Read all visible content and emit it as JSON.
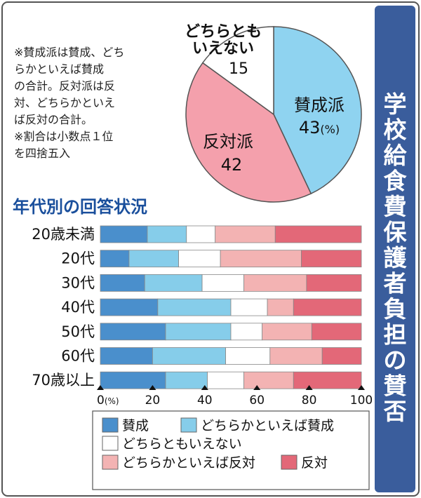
{
  "title": "学校給食費保護者負担の賛否",
  "notes": [
    "※賛成派は賛成、どち",
    "らかといえば賛成",
    "の合計。反対派は反",
    "対、どちらかといえ",
    "ば反対の合計。",
    "※割合は小数点１位",
    "を四捨五入"
  ],
  "unit_label": "(%)",
  "colors": {
    "sansei": "#4a8fcc",
    "dochira_sansei": "#86cdea",
    "neutral": "#ffffff",
    "dochira_hantai": "#f3b3b3",
    "hantai": "#e36878",
    "pie_sansei": "#8fd3f0",
    "pie_hantai": "#f4a0ac",
    "title_bg": "#3a5d9c",
    "section_title": "#1a4f9c"
  },
  "chart_data": [
    {
      "type": "pie",
      "title": "",
      "unit": "%",
      "slices": [
        {
          "label": "賛成派",
          "value": 43,
          "value_text": "43",
          "unit_text": "(%)"
        },
        {
          "label": "反対派",
          "value": 42,
          "value_text": "42",
          "unit_text": ""
        },
        {
          "label_lines": [
            "どちらとも",
            "いえない"
          ],
          "value": 15,
          "value_text": "15",
          "unit_text": ""
        }
      ]
    },
    {
      "type": "bar",
      "stacked": true,
      "orientation": "horizontal",
      "title": "年代別の回答状況",
      "categories": [
        "20歳未満",
        "20代",
        "30代",
        "40代",
        "50代",
        "60代",
        "70歳以上"
      ],
      "series": [
        {
          "name": "賛成",
          "values": [
            18,
            11,
            17,
            22,
            25,
            20,
            25
          ]
        },
        {
          "name": "どちらかといえば賛成",
          "values": [
            15,
            19,
            22,
            28,
            25,
            28,
            16
          ]
        },
        {
          "name": "どちらともいえない",
          "values": [
            11,
            16,
            16,
            14,
            12,
            17,
            14
          ]
        },
        {
          "name": "どちらかといえば反対",
          "values": [
            23,
            31,
            24,
            10,
            19,
            20,
            19
          ]
        },
        {
          "name": "反対",
          "values": [
            33,
            23,
            21,
            26,
            19,
            15,
            26
          ]
        }
      ],
      "xlim": [
        0,
        100
      ],
      "x_ticks": [
        "0",
        "20",
        "40",
        "60",
        "80",
        "100"
      ],
      "legend_position": "bottom"
    }
  ]
}
